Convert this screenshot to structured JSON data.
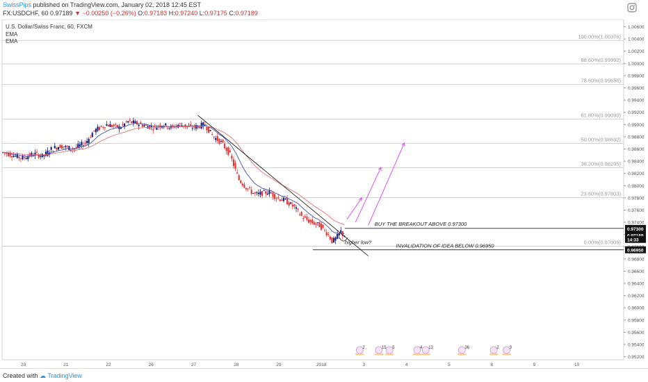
{
  "header": {
    "author": "SwissPips",
    "published": "published on TradingView.com, January 02, 2018 12:45 EST",
    "symbol": "FX:USDCHF, 60",
    "last": "0.97189",
    "change": "−0.00250 (−0.26%)",
    "o_label": "O:",
    "o_val": "0.97183",
    "h_label": "H:",
    "h_val": "0.97240",
    "l_label": "L:",
    "l_val": "0.97175",
    "c_label": "C:",
    "c_val": "0.97189"
  },
  "legend": {
    "title": "U.S. Dollar/Swiss Franc, 60, FXCM",
    "ema1": "EMA",
    "ema2": "EMA"
  },
  "footer": {
    "created": "Created with",
    "brand": "TradingView"
  },
  "colors": {
    "up": "#1a237e",
    "down": "#e53935",
    "ema_fast": "#3f51b5",
    "ema_slow": "#e57373",
    "fib": "#cfcfcf",
    "arrow": "#e040fb",
    "author": "#2196f3"
  },
  "chart_data": {
    "type": "candlestick",
    "symbol": "U.S. Dollar/Swiss Franc",
    "ylim": [
      0.9515,
      1.0072
    ],
    "y_ticks": [
      "1.00600",
      "1.00400",
      "1.00200",
      "1.00000",
      "0.99800",
      "0.99600",
      "0.99400",
      "0.99200",
      "0.99000",
      "0.98800",
      "0.98600",
      "0.98400",
      "0.98200",
      "0.98000",
      "0.97800",
      "0.97600",
      "0.97400",
      "0.97200",
      "0.97000",
      "0.96800",
      "0.96600",
      "0.96400",
      "0.96200",
      "0.96000",
      "0.95800",
      "0.95600",
      "0.95400",
      "0.95200"
    ],
    "x_ticks": [
      {
        "label": "20",
        "pos": 0.5
      },
      {
        "label": "21",
        "pos": 1.5
      },
      {
        "label": "22",
        "pos": 2.5
      },
      {
        "label": "26",
        "pos": 3.5
      },
      {
        "label": "27",
        "pos": 4.5
      },
      {
        "label": "28",
        "pos": 5.5
      },
      {
        "label": "29",
        "pos": 6.5
      },
      {
        "label": "2018",
        "pos": 7.5
      },
      {
        "label": "3",
        "pos": 8.5
      },
      {
        "label": "4",
        "pos": 9.5
      },
      {
        "label": "5",
        "pos": 10.5
      },
      {
        "label": "8",
        "pos": 11.5
      },
      {
        "label": "9",
        "pos": 12.5
      },
      {
        "label": "10",
        "pos": 13.5
      }
    ],
    "xlim": [
      0,
      14.6
    ],
    "price_path": [
      [
        0.0,
        0.9855
      ],
      [
        0.2,
        0.9852
      ],
      [
        0.5,
        0.9845
      ],
      [
        0.8,
        0.9852
      ],
      [
        1.0,
        0.9848
      ],
      [
        1.2,
        0.986
      ],
      [
        1.4,
        0.9865
      ],
      [
        1.7,
        0.986
      ],
      [
        2.0,
        0.987
      ],
      [
        2.2,
        0.989
      ],
      [
        2.5,
        0.99
      ],
      [
        2.8,
        0.9895
      ],
      [
        3.0,
        0.9905
      ],
      [
        3.3,
        0.99
      ],
      [
        3.6,
        0.9895
      ],
      [
        3.8,
        0.99
      ],
      [
        4.0,
        0.9895
      ],
      [
        4.2,
        0.99
      ],
      [
        4.5,
        0.9895
      ],
      [
        4.8,
        0.99
      ],
      [
        5.0,
        0.988
      ],
      [
        5.2,
        0.987
      ],
      [
        5.4,
        0.985
      ],
      [
        5.6,
        0.981
      ],
      [
        5.8,
        0.9795
      ],
      [
        6.0,
        0.9785
      ],
      [
        6.3,
        0.979
      ],
      [
        6.5,
        0.978
      ],
      [
        6.7,
        0.9775
      ],
      [
        6.9,
        0.9765
      ],
      [
        7.1,
        0.9748
      ],
      [
        7.3,
        0.974
      ],
      [
        7.5,
        0.9735
      ],
      [
        7.7,
        0.972
      ],
      [
        7.8,
        0.9708
      ],
      [
        7.9,
        0.9715
      ],
      [
        8.0,
        0.9725
      ],
      [
        8.05,
        0.97189
      ]
    ],
    "fib_levels": [
      {
        "label": "100.00%(1.00376)",
        "price": 1.00376
      },
      {
        "label": "88.60%(0.99992)",
        "price": 0.99992
      },
      {
        "label": "78.60%(0.99656)",
        "price": 0.99656
      },
      {
        "label": "61.80%(0.99090)",
        "price": 0.9909
      },
      {
        "label": "50.00%(0.98692)",
        "price": 0.98692
      },
      {
        "label": "38.20%(0.98295)",
        "price": 0.98295
      },
      {
        "label": "23.60%(0.97803)",
        "price": 0.97803
      },
      {
        "label": "0.00%(0.97009)",
        "price": 0.97009
      }
    ],
    "annotations": {
      "buy_text": "BUY THE BREAKOUT ABOVE 0.97300",
      "buy_level": 0.973,
      "buy_tag": "0.97300",
      "inval_text": "INVALIDATION OF IDEA BELOW 0.96950",
      "inval_level": 0.9695,
      "inval_tag": "0.96950",
      "higher_low": "higher low?",
      "last_price_tag": "0.97189",
      "countdown_tag": "14:33",
      "trendline": [
        [
          4.6,
          0.9915
        ],
        [
          8.6,
          0.9685
        ]
      ],
      "arrows": [
        [
          [
            8.1,
            0.9745
          ],
          [
            8.45,
            0.978
          ]
        ],
        [
          [
            8.3,
            0.974
          ],
          [
            8.9,
            0.983
          ]
        ],
        [
          [
            8.6,
            0.9735
          ],
          [
            9.45,
            0.987
          ]
        ]
      ]
    },
    "events": [
      {
        "pos": 8.4,
        "text": "2"
      },
      {
        "pos": 8.85,
        "text": "15"
      },
      {
        "pos": 9.1,
        "text": "5"
      },
      {
        "pos": 9.75,
        "text": "4"
      },
      {
        "pos": 9.95,
        "text": "12"
      },
      {
        "pos": 10.8,
        "text": "36"
      },
      {
        "pos": 11.55,
        "text": "2"
      },
      {
        "pos": 11.85,
        "text": "3"
      }
    ]
  }
}
